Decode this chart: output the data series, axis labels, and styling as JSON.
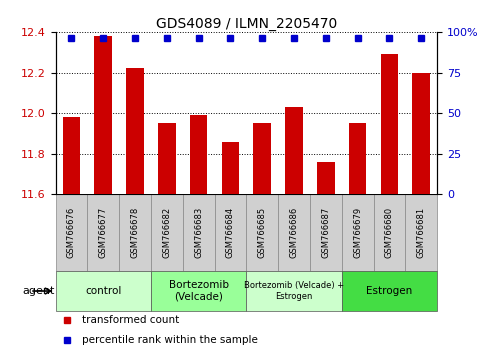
{
  "title": "GDS4089 / ILMN_2205470",
  "samples": [
    "GSM766676",
    "GSM766677",
    "GSM766678",
    "GSM766682",
    "GSM766683",
    "GSM766684",
    "GSM766685",
    "GSM766686",
    "GSM766687",
    "GSM766679",
    "GSM766680",
    "GSM766681"
  ],
  "bar_values": [
    11.98,
    12.38,
    12.22,
    11.95,
    11.99,
    11.86,
    11.95,
    12.03,
    11.76,
    11.95,
    12.29,
    12.2
  ],
  "percentile_values": [
    100,
    100,
    100,
    100,
    100,
    100,
    100,
    100,
    100,
    100,
    100,
    100
  ],
  "bar_color": "#cc0000",
  "dot_color": "#0000cc",
  "ylim_left": [
    11.6,
    12.4
  ],
  "ylim_right": [
    0,
    100
  ],
  "yticks_left": [
    11.6,
    11.8,
    12.0,
    12.2,
    12.4
  ],
  "yticks_right": [
    0,
    25,
    50,
    75,
    100
  ],
  "ytick_labels_right": [
    "0",
    "25",
    "50",
    "75",
    "100%"
  ],
  "groups": [
    {
      "label": "control",
      "start": 0,
      "end": 3,
      "color": "#ccffcc"
    },
    {
      "label": "Bortezomib\n(Velcade)",
      "start": 3,
      "end": 6,
      "color": "#99ff99"
    },
    {
      "label": "Bortezomib (Velcade) +\nEstrogen",
      "start": 6,
      "end": 9,
      "color": "#ccffcc"
    },
    {
      "label": "Estrogen",
      "start": 9,
      "end": 12,
      "color": "#44dd44"
    }
  ],
  "agent_label": "agent",
  "legend_items": [
    {
      "color": "#cc0000",
      "label": "transformed count"
    },
    {
      "color": "#0000cc",
      "label": "percentile rank within the sample"
    }
  ],
  "bg_color": "#ffffff",
  "grid_color": "#000000",
  "bar_width": 0.55,
  "tick_label_color_left": "#cc0000",
  "tick_label_color_right": "#0000cc",
  "sample_box_color": "#d0d0d0",
  "sample_box_edge": "#888888"
}
